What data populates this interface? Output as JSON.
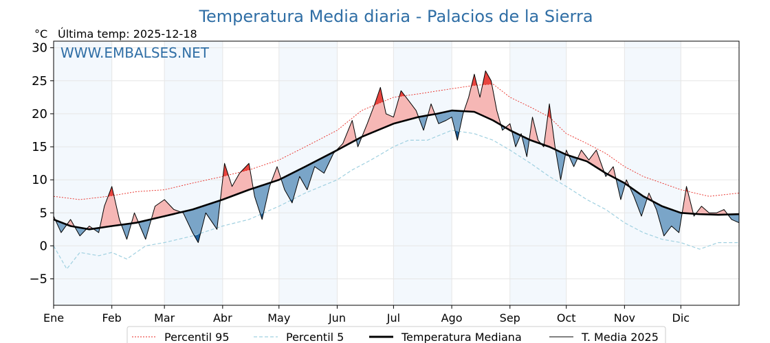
{
  "chart_data": {
    "type": "line",
    "title": "Temperatura Media diaria - Palacios de la Sierra",
    "unit": "°C",
    "last_update": "Última temp: 2025-12-18",
    "watermark": "WWW.EMBALSES.NET",
    "x_tick_labels": [
      "Ene",
      "Feb",
      "Mar",
      "Abr",
      "May",
      "Jun",
      "Jul",
      "Ago",
      "Sep",
      "Oct",
      "Nov",
      "Dic"
    ],
    "x_tick_days": [
      1,
      32,
      60,
      91,
      121,
      152,
      182,
      213,
      244,
      274,
      305,
      335
    ],
    "xlim": [
      1,
      366
    ],
    "ylim": [
      -9,
      31
    ],
    "y_ticks": [
      -5,
      0,
      5,
      10,
      15,
      20,
      25,
      30
    ],
    "grid": true,
    "legend": "bottom-center",
    "series": [
      {
        "name": "Percentil 95",
        "style": "dotted",
        "color": "#e8261f",
        "points": [
          [
            1,
            7.5
          ],
          [
            15,
            7.0
          ],
          [
            30,
            7.5
          ],
          [
            45,
            8.2
          ],
          [
            60,
            8.5
          ],
          [
            75,
            9.5
          ],
          [
            91,
            10.5
          ],
          [
            105,
            11.5
          ],
          [
            121,
            13.0
          ],
          [
            135,
            15.0
          ],
          [
            152,
            17.5
          ],
          [
            165,
            20.5
          ],
          [
            182,
            22.5
          ],
          [
            195,
            23.0
          ],
          [
            213,
            23.8
          ],
          [
            225,
            24.3
          ],
          [
            235,
            24.5
          ],
          [
            244,
            22.5
          ],
          [
            255,
            21.0
          ],
          [
            265,
            19.5
          ],
          [
            274,
            17.0
          ],
          [
            285,
            15.5
          ],
          [
            295,
            14.0
          ],
          [
            305,
            12.0
          ],
          [
            315,
            10.5
          ],
          [
            325,
            9.5
          ],
          [
            335,
            8.5
          ],
          [
            350,
            7.5
          ],
          [
            366,
            8.0
          ]
        ]
      },
      {
        "name": "Percentil 5",
        "style": "dashed",
        "color": "#9fd0e0",
        "points": [
          [
            1,
            0.0
          ],
          [
            8,
            -3.5
          ],
          [
            15,
            -1.0
          ],
          [
            25,
            -1.5
          ],
          [
            32,
            -1.0
          ],
          [
            40,
            -2.0
          ],
          [
            50,
            0.0
          ],
          [
            60,
            0.5
          ],
          [
            75,
            1.5
          ],
          [
            91,
            3.0
          ],
          [
            105,
            4.0
          ],
          [
            121,
            6.0
          ],
          [
            135,
            8.0
          ],
          [
            152,
            10.0
          ],
          [
            160,
            11.5
          ],
          [
            170,
            13.0
          ],
          [
            182,
            15.0
          ],
          [
            190,
            16.0
          ],
          [
            200,
            16.0
          ],
          [
            213,
            17.5
          ],
          [
            225,
            17.0
          ],
          [
            235,
            16.0
          ],
          [
            244,
            14.5
          ],
          [
            255,
            12.5
          ],
          [
            265,
            10.5
          ],
          [
            274,
            9.0
          ],
          [
            285,
            7.0
          ],
          [
            295,
            5.5
          ],
          [
            305,
            3.5
          ],
          [
            315,
            2.0
          ],
          [
            325,
            1.0
          ],
          [
            335,
            0.5
          ],
          [
            345,
            -0.5
          ],
          [
            355,
            0.5
          ],
          [
            366,
            0.5
          ]
        ]
      },
      {
        "name": "Temperatura Mediana",
        "style": "solid-thick",
        "color": "#000000",
        "points": [
          [
            1,
            4.0
          ],
          [
            10,
            3.0
          ],
          [
            20,
            2.5
          ],
          [
            32,
            3.0
          ],
          [
            45,
            3.5
          ],
          [
            60,
            4.5
          ],
          [
            75,
            5.5
          ],
          [
            91,
            7.0
          ],
          [
            105,
            8.5
          ],
          [
            121,
            10.0
          ],
          [
            135,
            12.0
          ],
          [
            152,
            14.5
          ],
          [
            165,
            16.5
          ],
          [
            182,
            18.5
          ],
          [
            195,
            19.5
          ],
          [
            205,
            20.0
          ],
          [
            213,
            20.5
          ],
          [
            225,
            20.3
          ],
          [
            235,
            19.0
          ],
          [
            244,
            17.5
          ],
          [
            255,
            16.0
          ],
          [
            265,
            15.0
          ],
          [
            274,
            13.8
          ],
          [
            285,
            12.8
          ],
          [
            295,
            11.0
          ],
          [
            305,
            9.5
          ],
          [
            315,
            7.5
          ],
          [
            325,
            6.0
          ],
          [
            335,
            5.0
          ],
          [
            345,
            4.8
          ],
          [
            355,
            4.7
          ],
          [
            366,
            4.8
          ]
        ]
      },
      {
        "name": "T. Media 2025",
        "style": "solid-thin",
        "color": "#000000",
        "points": [
          [
            1,
            4.5
          ],
          [
            5,
            2.0
          ],
          [
            10,
            4.0
          ],
          [
            15,
            1.5
          ],
          [
            20,
            3.0
          ],
          [
            25,
            2.0
          ],
          [
            28,
            6.0
          ],
          [
            32,
            9.0
          ],
          [
            36,
            4.0
          ],
          [
            40,
            1.0
          ],
          [
            44,
            5.0
          ],
          [
            47,
            3.0
          ],
          [
            50,
            1.0
          ],
          [
            55,
            6.0
          ],
          [
            60,
            7.0
          ],
          [
            65,
            5.5
          ],
          [
            70,
            5.0
          ],
          [
            75,
            2.0
          ],
          [
            78,
            0.5
          ],
          [
            82,
            5.0
          ],
          [
            88,
            2.5
          ],
          [
            92,
            12.5
          ],
          [
            96,
            9.0
          ],
          [
            100,
            11.0
          ],
          [
            105,
            12.5
          ],
          [
            108,
            7.5
          ],
          [
            112,
            4.0
          ],
          [
            116,
            9.0
          ],
          [
            120,
            12.0
          ],
          [
            124,
            8.5
          ],
          [
            128,
            6.5
          ],
          [
            132,
            10.5
          ],
          [
            136,
            8.5
          ],
          [
            140,
            12.0
          ],
          [
            145,
            11.0
          ],
          [
            150,
            14.0
          ],
          [
            155,
            15.5
          ],
          [
            160,
            19.0
          ],
          [
            163,
            15.0
          ],
          [
            168,
            18.5
          ],
          [
            172,
            21.5
          ],
          [
            175,
            24.0
          ],
          [
            178,
            20.0
          ],
          [
            182,
            19.5
          ],
          [
            186,
            23.5
          ],
          [
            190,
            22.0
          ],
          [
            194,
            20.5
          ],
          [
            198,
            17.5
          ],
          [
            202,
            21.5
          ],
          [
            206,
            18.5
          ],
          [
            210,
            19.0
          ],
          [
            213,
            19.5
          ],
          [
            216,
            16.0
          ],
          [
            219,
            20.0
          ],
          [
            222,
            22.5
          ],
          [
            225,
            26.0
          ],
          [
            228,
            22.5
          ],
          [
            231,
            26.5
          ],
          [
            234,
            25.0
          ],
          [
            237,
            20.5
          ],
          [
            240,
            17.5
          ],
          [
            244,
            18.5
          ],
          [
            247,
            15.0
          ],
          [
            250,
            17.0
          ],
          [
            253,
            13.5
          ],
          [
            256,
            19.5
          ],
          [
            259,
            16.0
          ],
          [
            262,
            15.0
          ],
          [
            265,
            21.5
          ],
          [
            268,
            15.0
          ],
          [
            271,
            10.0
          ],
          [
            274,
            14.5
          ],
          [
            278,
            12.0
          ],
          [
            282,
            14.5
          ],
          [
            286,
            13.0
          ],
          [
            290,
            14.5
          ],
          [
            295,
            10.5
          ],
          [
            299,
            12.0
          ],
          [
            303,
            7.0
          ],
          [
            306,
            10.0
          ],
          [
            310,
            7.5
          ],
          [
            314,
            4.5
          ],
          [
            318,
            8.0
          ],
          [
            322,
            5.5
          ],
          [
            326,
            1.5
          ],
          [
            330,
            3.0
          ],
          [
            334,
            2.0
          ],
          [
            338,
            9.0
          ],
          [
            342,
            4.5
          ],
          [
            346,
            6.0
          ],
          [
            350,
            5.0
          ],
          [
            354,
            5.0
          ],
          [
            358,
            5.5
          ],
          [
            362,
            4.0
          ],
          [
            366,
            3.5
          ]
        ]
      }
    ],
    "fill_colors": {
      "above_median": "#f6b7b5",
      "above_p95": "#e8453f",
      "below_median": "#7aa5c8",
      "below_p5": "#1f5f9a"
    }
  }
}
